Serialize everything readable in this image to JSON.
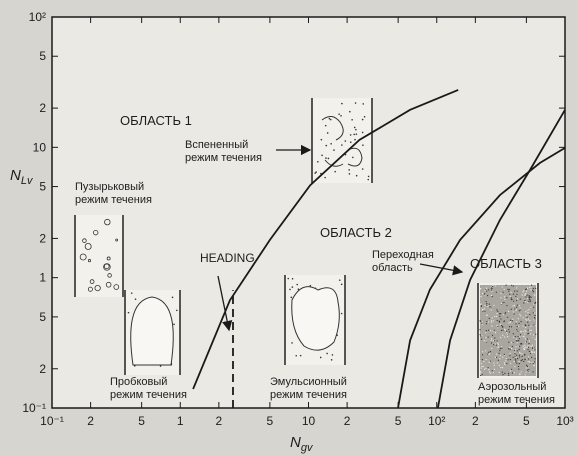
{
  "chart_data": {
    "type": "line",
    "x_label": "N",
    "x_label_sub": "gv",
    "y_label": "N",
    "y_label_sub": "Lv",
    "log_x": true,
    "log_y": true,
    "xlim": [
      0.1,
      1000
    ],
    "ylim": [
      0.1,
      100
    ],
    "xticks": [
      {
        "value": 0.1,
        "label": "10⁻¹"
      },
      {
        "value": 0.2,
        "label": "2"
      },
      {
        "value": 0.5,
        "label": "5"
      },
      1,
      2,
      5,
      10,
      {
        "value": 20,
        "label": "2"
      },
      {
        "value": 50,
        "label": "5"
      },
      {
        "value": 100,
        "label": "10²"
      },
      {
        "value": 200,
        "label": "2"
      },
      {
        "value": 500,
        "label": "5"
      },
      {
        "value": 1000,
        "label": "10³"
      }
    ],
    "yticks": [
      {
        "value": 0.1,
        "label": "10⁻¹"
      },
      {
        "value": 0.2,
        "label": "2"
      },
      {
        "value": 0.5,
        "label": "5"
      },
      1,
      2,
      5,
      10,
      {
        "value": 20,
        "label": "2"
      },
      {
        "value": 50,
        "label": "5"
      },
      {
        "value": 100,
        "label": "10²"
      }
    ],
    "series": [
      {
        "color": "#1a1a1a",
        "x": [
          1.26,
          2.44,
          5,
          10.3,
          25,
          62,
          147
        ],
        "values": [
          0.14,
          0.67,
          1.95,
          5.1,
          11.4,
          19.4,
          27.6
        ]
      },
      {
        "color": "#1a1a1a",
        "x": [
          49.9,
          62,
          88.5,
          152,
          311,
          638,
          1000
        ],
        "values": [
          0.1,
          0.33,
          0.81,
          1.95,
          4.3,
          7.6,
          9.9
        ]
      },
      {
        "color": "#1a1a1a",
        "x": [
          102,
          127,
          182,
          311,
          533,
          1000
        ],
        "values": [
          0.1,
          0.33,
          0.96,
          2.77,
          6.7,
          19.4
        ]
      },
      {
        "color": "#1a1a1a",
        "dashed": true,
        "x": [
          2.58,
          2.58
        ],
        "values": [
          0.1,
          0.8
        ]
      }
    ],
    "annotations": [
      [
        "ОБЛАСТЬ 1"
      ],
      [
        "Вспененный",
        "режим течения"
      ],
      [
        "Пузырьковый",
        "режим течения"
      ],
      [
        "HEADING"
      ],
      [
        "ОБЛАСТЬ 2"
      ],
      [
        "Переходная",
        "область"
      ],
      [
        "ОБЛАСТЬ 3"
      ],
      [
        "Пробковый",
        "режим течения"
      ],
      [
        "Эмульсионный",
        "режим течения"
      ],
      [
        "Аэрозольный",
        "режим течения"
      ]
    ]
  }
}
